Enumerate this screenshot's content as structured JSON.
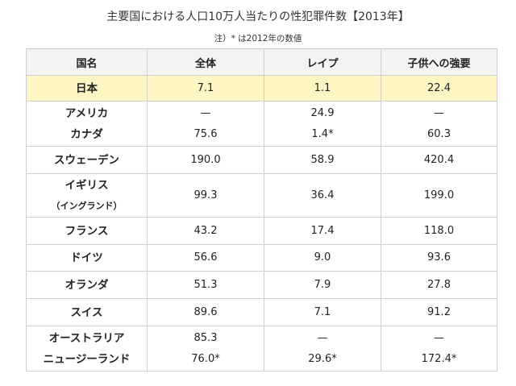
{
  "title": "主要国における人口10万人当たりの性犯罪件数【2013年】",
  "note": "注）* は2012年の数値",
  "headers": [
    "国名",
    "全体",
    "レイプ",
    "子供への強要"
  ],
  "rows": [
    {
      "names": [
        "日本"
      ],
      "total": [
        "7.1"
      ],
      "rape": [
        "1.1"
      ],
      "child": [
        "22.4"
      ],
      "highlight": true
    },
    {
      "names": [
        "アメリカ",
        "カナダ"
      ],
      "total": [
        "—",
        "75.6"
      ],
      "rape": [
        "24.9",
        "1.4*"
      ],
      "child": [
        "—",
        "60.3"
      ]
    },
    {
      "names": [
        "スウェーデン"
      ],
      "total": [
        "190.0"
      ],
      "rape": [
        "58.9"
      ],
      "child": [
        "420.4"
      ]
    },
    {
      "names": [
        "イギリス",
        "（イングランド）"
      ],
      "total": [
        "99.3"
      ],
      "rape": [
        "36.4"
      ],
      "child": [
        "199.0"
      ]
    },
    {
      "names": [
        "フランス"
      ],
      "total": [
        "43.2"
      ],
      "rape": [
        "17.4"
      ],
      "child": [
        "118.0"
      ]
    },
    {
      "names": [
        "ドイツ"
      ],
      "total": [
        "56.6"
      ],
      "rape": [
        "9.0"
      ],
      "child": [
        "93.6"
      ]
    },
    {
      "names": [
        "オランダ"
      ],
      "total": [
        "51.3"
      ],
      "rape": [
        "7.9"
      ],
      "child": [
        "27.8"
      ]
    },
    {
      "names": [
        "スイス"
      ],
      "total": [
        "89.6"
      ],
      "rape": [
        "7.1"
      ],
      "child": [
        "91.2"
      ]
    },
    {
      "names": [
        "オーストラリア",
        "ニュージーランド"
      ],
      "total": [
        "85.3",
        "76.0*"
      ],
      "rape": [
        "—",
        "29.6*"
      ],
      "child": [
        "—",
        "172.4*"
      ]
    }
  ]
}
